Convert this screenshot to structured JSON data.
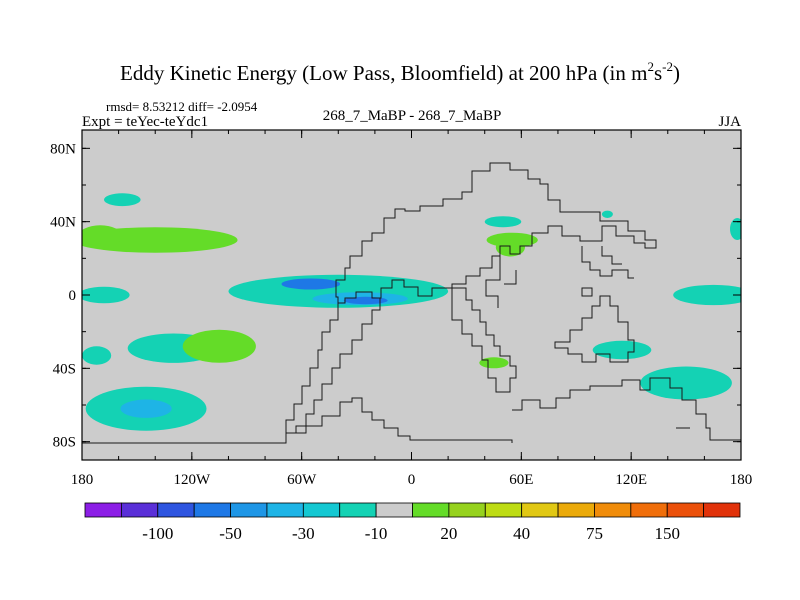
{
  "chart_data": {
    "type": "heatmap",
    "title": {
      "main": "Eddy Kinetic Energy (Low Pass, Bloomfield) at 200 hPa (in m",
      "sup1": "2",
      "mid": "s",
      "sup2": "-2",
      "end": ")"
    },
    "subtitle_left_top": "rmsd= 8.53212 diff= -2.0954",
    "subtitle_left": "Expt = teYec-teYdc1",
    "subtitle_center": "268_7_MaBP - 268_7_MaBP",
    "subtitle_right": "JJA",
    "x_range": [
      -180,
      180
    ],
    "y_range": [
      -90,
      90
    ],
    "x_ticks": [
      {
        "value": -180,
        "label": "180"
      },
      {
        "value": -120,
        "label": "120W"
      },
      {
        "value": -60,
        "label": "60W"
      },
      {
        "value": 0,
        "label": "0"
      },
      {
        "value": 60,
        "label": "60E"
      },
      {
        "value": 120,
        "label": "120E"
      },
      {
        "value": 180,
        "label": "180"
      }
    ],
    "y_ticks": [
      {
        "value": 80,
        "label": "80N"
      },
      {
        "value": 40,
        "label": "40N"
      },
      {
        "value": 0,
        "label": "0"
      },
      {
        "value": -40,
        "label": "40S"
      },
      {
        "value": -80,
        "label": "80S"
      }
    ],
    "background_level_color": "#cccccc",
    "colorbar": {
      "colors": [
        "#8c1ee6",
        "#5a2fd8",
        "#2e55e0",
        "#1e78e6",
        "#1e96e6",
        "#1eb4e6",
        "#14c8d2",
        "#14d2b4",
        "#cccccc",
        "#64dc28",
        "#96d21e",
        "#bedc14",
        "#e1c814",
        "#ebaa0a",
        "#f08c0a",
        "#f06e0a",
        "#eb500a",
        "#e1320a"
      ],
      "labels": [
        {
          "after_box": 1,
          "text": "-100"
        },
        {
          "after_box": 3,
          "text": "-50"
        },
        {
          "after_box": 5,
          "text": "-30"
        },
        {
          "after_box": 7,
          "text": "-10"
        },
        {
          "after_box": 9,
          "text": "20"
        },
        {
          "after_box": 11,
          "text": "40"
        },
        {
          "after_box": 13,
          "text": "75"
        },
        {
          "after_box": 15,
          "text": "150"
        }
      ]
    },
    "anomaly_regions": [
      {
        "name": "nw-pacific-neg",
        "level": -10,
        "lon": -158,
        "lat": 52,
        "rlon": 10,
        "rlat": 3.5
      },
      {
        "name": "north-pacific-pos",
        "level": 20,
        "lon": -140,
        "lat": 30,
        "rlon": 45,
        "rlat": 7
      },
      {
        "name": "north-pacific-pos-west",
        "level": 20,
        "lon": -170,
        "lat": 32,
        "rlon": 12,
        "rlat": 6
      },
      {
        "name": "far-east-eq-neg",
        "level": -10,
        "lon": 165,
        "lat": 0,
        "rlon": 22,
        "rlat": 5.5
      },
      {
        "name": "equatorial-atlantic-neg",
        "level": -10,
        "lon": -40,
        "lat": 2,
        "rlon": 60,
        "rlat": 9
      },
      {
        "name": "equatorial-atlantic-core-a",
        "level": -50,
        "lon": -55,
        "lat": 6,
        "rlon": 16,
        "rlat": 3
      },
      {
        "name": "equatorial-atlantic-core-b",
        "level": -30,
        "lon": -28,
        "lat": -2,
        "rlon": 26,
        "rlat": 3.5
      },
      {
        "name": "equatorial-atlantic-core-c",
        "level": -50,
        "lon": -25,
        "lat": -3,
        "rlon": 12,
        "rlat": 2
      },
      {
        "name": "w-equatorial-neg",
        "level": -10,
        "lon": -168,
        "lat": 0,
        "rlon": 14,
        "rlat": 4.5
      },
      {
        "name": "n-africa-neg",
        "level": -10,
        "lon": 50,
        "lat": 40,
        "rlon": 10,
        "rlat": 3
      },
      {
        "name": "n-africa-pos",
        "level": 20,
        "lon": 54,
        "lat": 26,
        "rlon": 8,
        "rlat": 5
      },
      {
        "name": "india-pos",
        "level": 20,
        "lon": 55,
        "lat": 30,
        "rlon": 14,
        "rlat": 4
      },
      {
        "name": "asia-neg",
        "level": -10,
        "lon": 107,
        "lat": 44,
        "rlon": 3,
        "rlat": 2
      },
      {
        "name": "east-pacific-neg",
        "level": -10,
        "lon": -130,
        "lat": -29,
        "rlon": 25,
        "rlat": 8
      },
      {
        "name": "east-pacific-neg-west",
        "level": -10,
        "lon": -172,
        "lat": -33,
        "rlon": 8,
        "rlat": 5
      },
      {
        "name": "south-pacific-pos",
        "level": 20,
        "lon": -105,
        "lat": -28,
        "rlon": 20,
        "rlat": 9
      },
      {
        "name": "s-indian-pos",
        "level": 20,
        "lon": 45,
        "lat": -37,
        "rlon": 8,
        "rlat": 3
      },
      {
        "name": "s-indian-neg",
        "level": -10,
        "lon": 115,
        "lat": -30,
        "rlon": 16,
        "rlat": 5
      },
      {
        "name": "australia-neg",
        "level": -10,
        "lon": 150,
        "lat": -48,
        "rlon": 25,
        "rlat": 9
      },
      {
        "name": "southern-ocean-neg",
        "level": -10,
        "lon": -145,
        "lat": -62,
        "rlon": 33,
        "rlat": 12
      },
      {
        "name": "southern-ocean-core",
        "level": -30,
        "lon": -145,
        "lat": -62,
        "rlon": 14,
        "rlat": 5
      },
      {
        "name": "east-pacific-edge",
        "level": -10,
        "lon": 178,
        "lat": 36,
        "rlon": 4,
        "rlat": 6
      }
    ]
  }
}
